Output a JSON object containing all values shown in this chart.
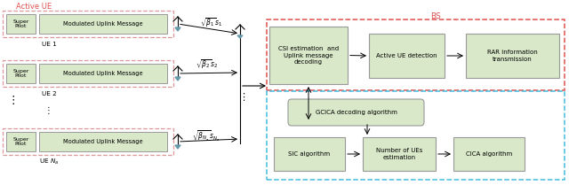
{
  "fig_width": 6.4,
  "fig_height": 2.09,
  "dpi": 100,
  "bg_color": "#ffffff",
  "active_ue_label": "Active UE",
  "active_ue_color": "#e05050",
  "bs_label": "BS",
  "bs_color": "#e05050",
  "gcica_color": "#44bbdd",
  "ue_box_edge": "#dd9999",
  "block_fill": "#d8e8c8",
  "block_edge": "#999999",
  "super_pilot_text": "Super\nPilot",
  "modulated_text": "Modulated Uplink Message",
  "ue1_label": "UE 1",
  "ue2_label": "UE 2",
  "ue_na_label": "UE $N_a$",
  "csi_text": "CSI estimation  and\nUplink message\ndecoding",
  "active_ue_det_text": "Active UE detection",
  "rar_text": "RAR information\ntransmission",
  "gcica_text": "GCICA decoding algorithm",
  "sic_text": "SIC algorithm",
  "num_ue_text": "Number of UEs\nestimation",
  "cica_text": "CICA algorithm",
  "beta1": "$\\sqrt{\\beta_1}s_1$",
  "beta2": "$\\sqrt{\\beta_2}s_2$",
  "betaN": "$\\sqrt{\\beta_{N_a}}s_{N_a}$"
}
